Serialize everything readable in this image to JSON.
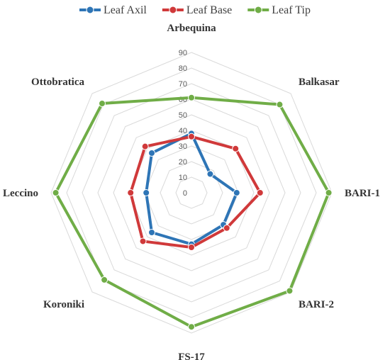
{
  "chart_data": {
    "type": "radar",
    "title": "",
    "categories": [
      "Arbequina",
      "Balkasar",
      "BARI-1",
      "BARI-2",
      "FS-17",
      "Koroniki",
      "Leccino",
      "Ottobratica"
    ],
    "ticks": [
      "0",
      "10",
      "20",
      "30",
      "40",
      "50",
      "60",
      "70",
      "80",
      "90"
    ],
    "rlim": [
      0,
      90
    ],
    "grid": true,
    "legend_position": "top",
    "series": [
      {
        "name": "Leaf Axil",
        "color": "#2e75b6",
        "values": [
          38,
          17,
          29,
          29,
          33,
          36,
          29,
          36
        ]
      },
      {
        "name": "Leaf Base",
        "color": "#d0393a",
        "values": [
          36,
          40,
          44,
          32,
          35,
          44,
          39,
          42
        ]
      },
      {
        "name": "Leaf Tip",
        "color": "#70ad47",
        "values": [
          61,
          80,
          88,
          89,
          86,
          79,
          87,
          81
        ]
      }
    ]
  }
}
